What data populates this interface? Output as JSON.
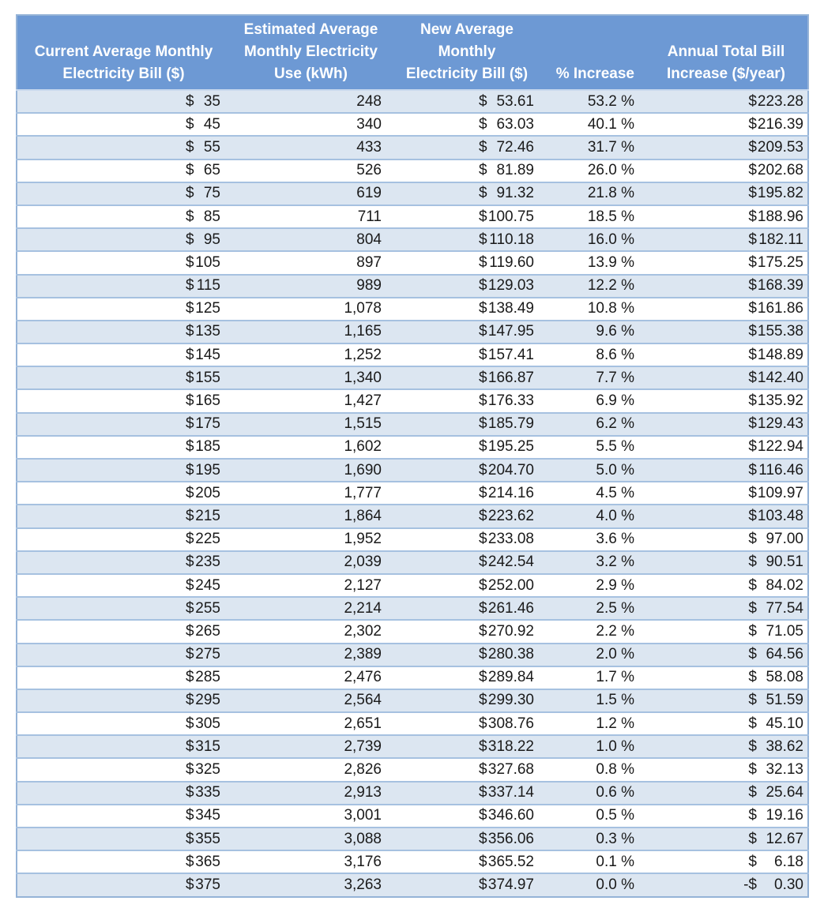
{
  "colors": {
    "header_bg": "#6D99D4",
    "header_text": "#FFFFFF",
    "band_bg": "#DCE6F1",
    "row_border": "#A6C1E0",
    "outer_border": "#95B3D7",
    "header_border": "#C9D9EE",
    "data_text": "#1A1A1A"
  },
  "table": {
    "headers": [
      "Current Average Monthly\nElectricity Bill ($)",
      "Estimated Average\nMonthly Electricity\nUse (kWh)",
      "New Average\nMonthly\nElectricity Bill ($)",
      "% Increase",
      "Annual Total Bill\nIncrease ($/year)"
    ],
    "rows": [
      {
        "bill_sign": "$",
        "bill": "35",
        "kwh": "248",
        "new_sign": "$",
        "new": "53.61",
        "pct": "53.2 %",
        "annual_sign": "$",
        "annual": "223.28"
      },
      {
        "bill_sign": "$",
        "bill": "45",
        "kwh": "340",
        "new_sign": "$",
        "new": "63.03",
        "pct": "40.1 %",
        "annual_sign": "$",
        "annual": "216.39"
      },
      {
        "bill_sign": "$",
        "bill": "55",
        "kwh": "433",
        "new_sign": "$",
        "new": "72.46",
        "pct": "31.7 %",
        "annual_sign": "$",
        "annual": "209.53"
      },
      {
        "bill_sign": "$",
        "bill": "65",
        "kwh": "526",
        "new_sign": "$",
        "new": "81.89",
        "pct": "26.0 %",
        "annual_sign": "$",
        "annual": "202.68"
      },
      {
        "bill_sign": "$",
        "bill": "75",
        "kwh": "619",
        "new_sign": "$",
        "new": "91.32",
        "pct": "21.8 %",
        "annual_sign": "$",
        "annual": "195.82"
      },
      {
        "bill_sign": "$",
        "bill": "85",
        "kwh": "711",
        "new_sign": "$",
        "new": "100.75",
        "pct": "18.5 %",
        "annual_sign": "$",
        "annual": "188.96"
      },
      {
        "bill_sign": "$",
        "bill": "95",
        "kwh": "804",
        "new_sign": "$",
        "new": "110.18",
        "pct": "16.0 %",
        "annual_sign": "$",
        "annual": "182.11"
      },
      {
        "bill_sign": "$",
        "bill": "105",
        "kwh": "897",
        "new_sign": "$",
        "new": "119.60",
        "pct": "13.9 %",
        "annual_sign": "$",
        "annual": "175.25"
      },
      {
        "bill_sign": "$",
        "bill": "115",
        "kwh": "989",
        "new_sign": "$",
        "new": "129.03",
        "pct": "12.2 %",
        "annual_sign": "$",
        "annual": "168.39"
      },
      {
        "bill_sign": "$",
        "bill": "125",
        "kwh": "1,078",
        "new_sign": "$",
        "new": "138.49",
        "pct": "10.8 %",
        "annual_sign": "$",
        "annual": "161.86"
      },
      {
        "bill_sign": "$",
        "bill": "135",
        "kwh": "1,165",
        "new_sign": "$",
        "new": "147.95",
        "pct": "9.6 %",
        "annual_sign": "$",
        "annual": "155.38"
      },
      {
        "bill_sign": "$",
        "bill": "145",
        "kwh": "1,252",
        "new_sign": "$",
        "new": "157.41",
        "pct": "8.6 %",
        "annual_sign": "$",
        "annual": "148.89"
      },
      {
        "bill_sign": "$",
        "bill": "155",
        "kwh": "1,340",
        "new_sign": "$",
        "new": "166.87",
        "pct": "7.7 %",
        "annual_sign": "$",
        "annual": "142.40"
      },
      {
        "bill_sign": "$",
        "bill": "165",
        "kwh": "1,427",
        "new_sign": "$",
        "new": "176.33",
        "pct": "6.9 %",
        "annual_sign": "$",
        "annual": "135.92"
      },
      {
        "bill_sign": "$",
        "bill": "175",
        "kwh": "1,515",
        "new_sign": "$",
        "new": "185.79",
        "pct": "6.2 %",
        "annual_sign": "$",
        "annual": "129.43"
      },
      {
        "bill_sign": "$",
        "bill": "185",
        "kwh": "1,602",
        "new_sign": "$",
        "new": "195.25",
        "pct": "5.5 %",
        "annual_sign": "$",
        "annual": "122.94"
      },
      {
        "bill_sign": "$",
        "bill": "195",
        "kwh": "1,690",
        "new_sign": "$",
        "new": "204.70",
        "pct": "5.0 %",
        "annual_sign": "$",
        "annual": "116.46"
      },
      {
        "bill_sign": "$",
        "bill": "205",
        "kwh": "1,777",
        "new_sign": "$",
        "new": "214.16",
        "pct": "4.5 %",
        "annual_sign": "$",
        "annual": "109.97"
      },
      {
        "bill_sign": "$",
        "bill": "215",
        "kwh": "1,864",
        "new_sign": "$",
        "new": "223.62",
        "pct": "4.0 %",
        "annual_sign": "$",
        "annual": "103.48"
      },
      {
        "bill_sign": "$",
        "bill": "225",
        "kwh": "1,952",
        "new_sign": "$",
        "new": "233.08",
        "pct": "3.6 %",
        "annual_sign": "$",
        "annual": "97.00"
      },
      {
        "bill_sign": "$",
        "bill": "235",
        "kwh": "2,039",
        "new_sign": "$",
        "new": "242.54",
        "pct": "3.2 %",
        "annual_sign": "$",
        "annual": "90.51"
      },
      {
        "bill_sign": "$",
        "bill": "245",
        "kwh": "2,127",
        "new_sign": "$",
        "new": "252.00",
        "pct": "2.9 %",
        "annual_sign": "$",
        "annual": "84.02"
      },
      {
        "bill_sign": "$",
        "bill": "255",
        "kwh": "2,214",
        "new_sign": "$",
        "new": "261.46",
        "pct": "2.5 %",
        "annual_sign": "$",
        "annual": "77.54"
      },
      {
        "bill_sign": "$",
        "bill": "265",
        "kwh": "2,302",
        "new_sign": "$",
        "new": "270.92",
        "pct": "2.2 %",
        "annual_sign": "$",
        "annual": "71.05"
      },
      {
        "bill_sign": "$",
        "bill": "275",
        "kwh": "2,389",
        "new_sign": "$",
        "new": "280.38",
        "pct": "2.0 %",
        "annual_sign": "$",
        "annual": "64.56"
      },
      {
        "bill_sign": "$",
        "bill": "285",
        "kwh": "2,476",
        "new_sign": "$",
        "new": "289.84",
        "pct": "1.7 %",
        "annual_sign": "$",
        "annual": "58.08"
      },
      {
        "bill_sign": "$",
        "bill": "295",
        "kwh": "2,564",
        "new_sign": "$",
        "new": "299.30",
        "pct": "1.5 %",
        "annual_sign": "$",
        "annual": "51.59"
      },
      {
        "bill_sign": "$",
        "bill": "305",
        "kwh": "2,651",
        "new_sign": "$",
        "new": "308.76",
        "pct": "1.2 %",
        "annual_sign": "$",
        "annual": "45.10"
      },
      {
        "bill_sign": "$",
        "bill": "315",
        "kwh": "2,739",
        "new_sign": "$",
        "new": "318.22",
        "pct": "1.0 %",
        "annual_sign": "$",
        "annual": "38.62"
      },
      {
        "bill_sign": "$",
        "bill": "325",
        "kwh": "2,826",
        "new_sign": "$",
        "new": "327.68",
        "pct": "0.8 %",
        "annual_sign": "$",
        "annual": "32.13"
      },
      {
        "bill_sign": "$",
        "bill": "335",
        "kwh": "2,913",
        "new_sign": "$",
        "new": "337.14",
        "pct": "0.6 %",
        "annual_sign": "$",
        "annual": "25.64"
      },
      {
        "bill_sign": "$",
        "bill": "345",
        "kwh": "3,001",
        "new_sign": "$",
        "new": "346.60",
        "pct": "0.5 %",
        "annual_sign": "$",
        "annual": "19.16"
      },
      {
        "bill_sign": "$",
        "bill": "355",
        "kwh": "3,088",
        "new_sign": "$",
        "new": "356.06",
        "pct": "0.3 %",
        "annual_sign": "$",
        "annual": "12.67"
      },
      {
        "bill_sign": "$",
        "bill": "365",
        "kwh": "3,176",
        "new_sign": "$",
        "new": "365.52",
        "pct": "0.1 %",
        "annual_sign": "$",
        "annual": "6.18"
      },
      {
        "bill_sign": "$",
        "bill": "375",
        "kwh": "3,263",
        "new_sign": "$",
        "new": "374.97",
        "pct": "0.0 %",
        "annual_sign": "-$",
        "annual": "0.30"
      }
    ]
  },
  "chart_data": {
    "type": "table",
    "columns": [
      "Current Average Monthly Electricity Bill ($)",
      "Estimated Average Monthly Electricity Use (kWh)",
      "New Average Monthly Electricity Bill ($)",
      "% Increase",
      "Annual Total Bill Increase ($/year)"
    ],
    "rows": [
      [
        35,
        248,
        53.61,
        53.2,
        223.28
      ],
      [
        45,
        340,
        63.03,
        40.1,
        216.39
      ],
      [
        55,
        433,
        72.46,
        31.7,
        209.53
      ],
      [
        65,
        526,
        81.89,
        26.0,
        202.68
      ],
      [
        75,
        619,
        91.32,
        21.8,
        195.82
      ],
      [
        85,
        711,
        100.75,
        18.5,
        188.96
      ],
      [
        95,
        804,
        110.18,
        16.0,
        182.11
      ],
      [
        105,
        897,
        119.6,
        13.9,
        175.25
      ],
      [
        115,
        989,
        129.03,
        12.2,
        168.39
      ],
      [
        125,
        1078,
        138.49,
        10.8,
        161.86
      ],
      [
        135,
        1165,
        147.95,
        9.6,
        155.38
      ],
      [
        145,
        1252,
        157.41,
        8.6,
        148.89
      ],
      [
        155,
        1340,
        166.87,
        7.7,
        142.4
      ],
      [
        165,
        1427,
        176.33,
        6.9,
        135.92
      ],
      [
        175,
        1515,
        185.79,
        6.2,
        129.43
      ],
      [
        185,
        1602,
        195.25,
        5.5,
        122.94
      ],
      [
        195,
        1690,
        204.7,
        5.0,
        116.46
      ],
      [
        205,
        1777,
        214.16,
        4.5,
        109.97
      ],
      [
        215,
        1864,
        223.62,
        4.0,
        103.48
      ],
      [
        225,
        1952,
        233.08,
        3.6,
        97.0
      ],
      [
        235,
        2039,
        242.54,
        3.2,
        90.51
      ],
      [
        245,
        2127,
        252.0,
        2.9,
        84.02
      ],
      [
        255,
        2214,
        261.46,
        2.5,
        77.54
      ],
      [
        265,
        2302,
        270.92,
        2.2,
        71.05
      ],
      [
        275,
        2389,
        280.38,
        2.0,
        64.56
      ],
      [
        285,
        2476,
        289.84,
        1.7,
        58.08
      ],
      [
        295,
        2564,
        299.3,
        1.5,
        51.59
      ],
      [
        305,
        2651,
        308.76,
        1.2,
        45.1
      ],
      [
        315,
        2739,
        318.22,
        1.0,
        38.62
      ],
      [
        325,
        2826,
        327.68,
        0.8,
        32.13
      ],
      [
        335,
        2913,
        337.14,
        0.6,
        25.64
      ],
      [
        345,
        3001,
        346.6,
        0.5,
        19.16
      ],
      [
        355,
        3088,
        356.06,
        0.3,
        12.67
      ],
      [
        365,
        3176,
        365.52,
        0.1,
        6.18
      ],
      [
        375,
        3263,
        374.97,
        0.0,
        -0.3
      ]
    ]
  }
}
